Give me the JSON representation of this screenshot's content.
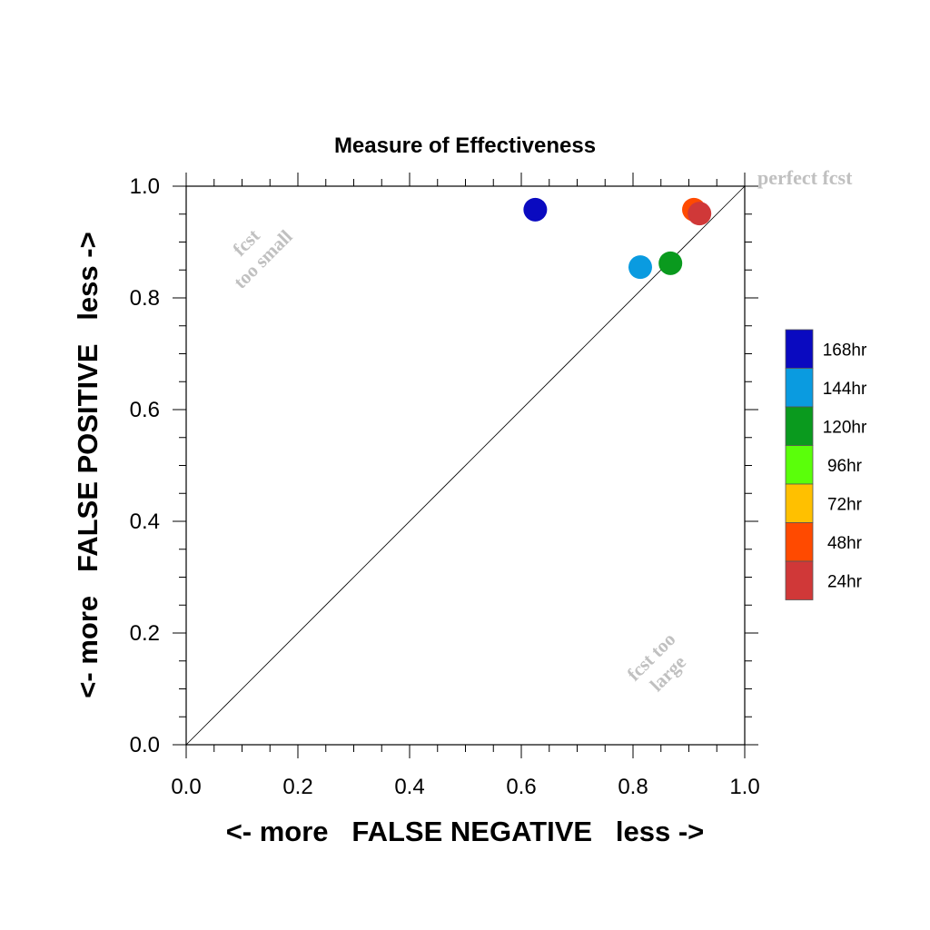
{
  "chart_data": {
    "type": "scatter",
    "title": "Measure of Effectiveness",
    "xlabel": "<- more   FALSE NEGATIVE   less ->",
    "ylabel": "<- more   FALSE POSITIVE   less ->",
    "xlim": [
      0.0,
      1.0
    ],
    "ylim": [
      0.0,
      1.0
    ],
    "x_ticks": [
      "0.0",
      "0.2",
      "0.4",
      "0.6",
      "0.8",
      "1.0"
    ],
    "y_ticks": [
      "0.0",
      "0.2",
      "0.4",
      "0.6",
      "0.8",
      "1.0"
    ],
    "grid": false,
    "diagonal_line": true,
    "legend_position": "right",
    "annotations": {
      "perfect": "perfect fcst",
      "small_line1": "fcst",
      "small_line2": "too small",
      "large_line1": "fcst too",
      "large_line2": "large"
    },
    "series": [
      {
        "name": "168hr",
        "color": "#0a0ac0",
        "x": 0.625,
        "y": 0.958
      },
      {
        "name": "144hr",
        "color": "#0a9be0",
        "x": 0.813,
        "y": 0.855
      },
      {
        "name": "120hr",
        "color": "#0a9a1e",
        "x": 0.867,
        "y": 0.862
      },
      {
        "name": "96hr",
        "color": "#5aff0a",
        "x": null,
        "y": null
      },
      {
        "name": "72hr",
        "color": "#ffc000",
        "x": null,
        "y": null
      },
      {
        "name": "48hr",
        "color": "#ff4a00",
        "x": 0.909,
        "y": 0.958
      },
      {
        "name": "24hr",
        "color": "#d03838",
        "x": 0.919,
        "y": 0.951
      }
    ]
  }
}
